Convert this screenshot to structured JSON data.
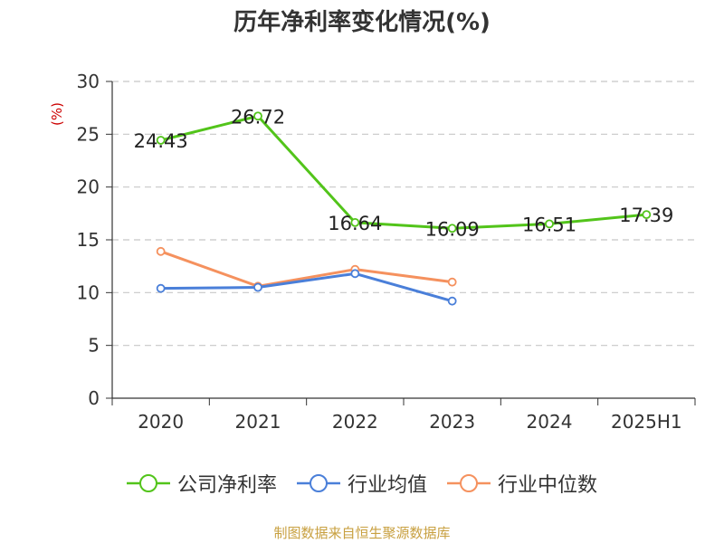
{
  "chart_data": {
    "type": "line",
    "title": "历年净利率变化情况(%)",
    "ylabel": "(%)",
    "categories": [
      "2020",
      "2021",
      "2022",
      "2023",
      "2024",
      "2025H1"
    ],
    "ylim": [
      0,
      30
    ],
    "yticks": [
      "0",
      "5",
      "10",
      "15",
      "20",
      "25",
      "30"
    ],
    "grid": true,
    "legend_position": "bottom",
    "series": [
      {
        "name": "公司净利率",
        "color": "#52c41a",
        "values": [
          24.43,
          26.72,
          16.64,
          16.09,
          16.51,
          17.39
        ],
        "labels": [
          "24.43",
          "26.72",
          "16.64",
          "16.09",
          "16.51",
          "17.39"
        ]
      },
      {
        "name": "行业均值",
        "color": "#4a7fd9",
        "values": [
          10.4,
          10.5,
          11.8,
          9.2,
          null,
          null
        ]
      },
      {
        "name": "行业中位数",
        "color": "#f5915e",
        "values": [
          13.9,
          10.6,
          12.2,
          11.0,
          null,
          null
        ]
      }
    ]
  },
  "source_note": "制图数据来自恒生聚源数据库"
}
